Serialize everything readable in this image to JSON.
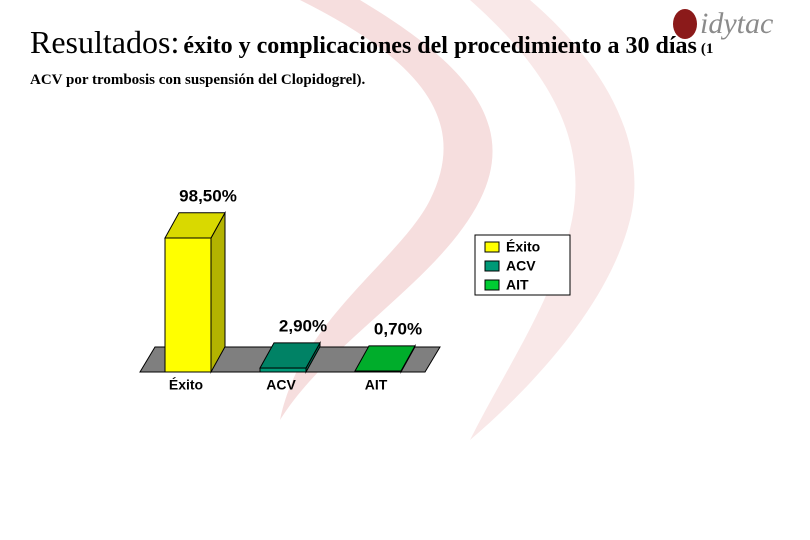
{
  "logo": "idytac",
  "header": {
    "heading": "Resultados:",
    "subheading": "éxito y complicaciones del procedimiento a 30 días",
    "note": "(1 ACV por trombosis con suspensión del Clopidogrel)."
  },
  "chart_data": {
    "type": "bar3d",
    "categories": [
      "Éxito",
      "ACV",
      "AIT"
    ],
    "values": [
      98.5,
      2.9,
      0.7
    ],
    "value_labels": [
      "98,50%",
      "2,90%",
      "0,70%"
    ],
    "colors": [
      "#ffff00",
      "#009977",
      "#00cc33"
    ],
    "legend": "right"
  }
}
